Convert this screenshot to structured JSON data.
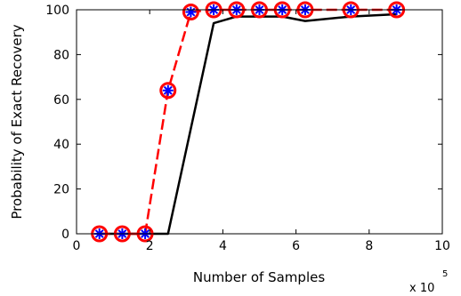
{
  "chart_data": {
    "type": "line",
    "xlabel": "Number of Samples",
    "ylabel": "Probability of Exact Recovery",
    "x_multiplier": {
      "base": "x 10",
      "exponent": "5"
    },
    "xlim": [
      0,
      10
    ],
    "ylim": [
      0,
      100
    ],
    "x_ticks": [
      0,
      2,
      4,
      6,
      8,
      10
    ],
    "y_ticks": [
      0,
      20,
      40,
      60,
      80,
      100
    ],
    "grid": false,
    "series": [
      {
        "color": "#000000",
        "style": "solid",
        "marker": "none",
        "x": [
          0.625,
          1.25,
          1.875,
          2.5,
          3.75,
          4.375,
          5.0,
          5.625,
          6.25,
          7.5,
          8.75
        ],
        "y": [
          0,
          0,
          0,
          0,
          94,
          97,
          97,
          97,
          95,
          97,
          98
        ]
      },
      {
        "color": "#ff0000",
        "style": "dashed",
        "marker": "circle",
        "x": [
          0.625,
          1.25,
          1.875,
          2.5,
          3.125,
          3.75,
          4.375,
          5.0,
          5.625,
          6.25,
          7.5,
          8.75
        ],
        "y": [
          0,
          0,
          0,
          64,
          99,
          100,
          100,
          100,
          100,
          100,
          100,
          100
        ]
      },
      {
        "color": "#0000ff",
        "style": "none",
        "marker": "star",
        "x": [
          0.625,
          1.25,
          1.875,
          2.5,
          3.125,
          3.75,
          4.375,
          5.0,
          5.625,
          6.25,
          7.5,
          8.75
        ],
        "y": [
          0,
          0,
          0,
          64,
          99,
          100,
          100,
          100,
          100,
          100,
          100,
          100
        ]
      }
    ]
  }
}
